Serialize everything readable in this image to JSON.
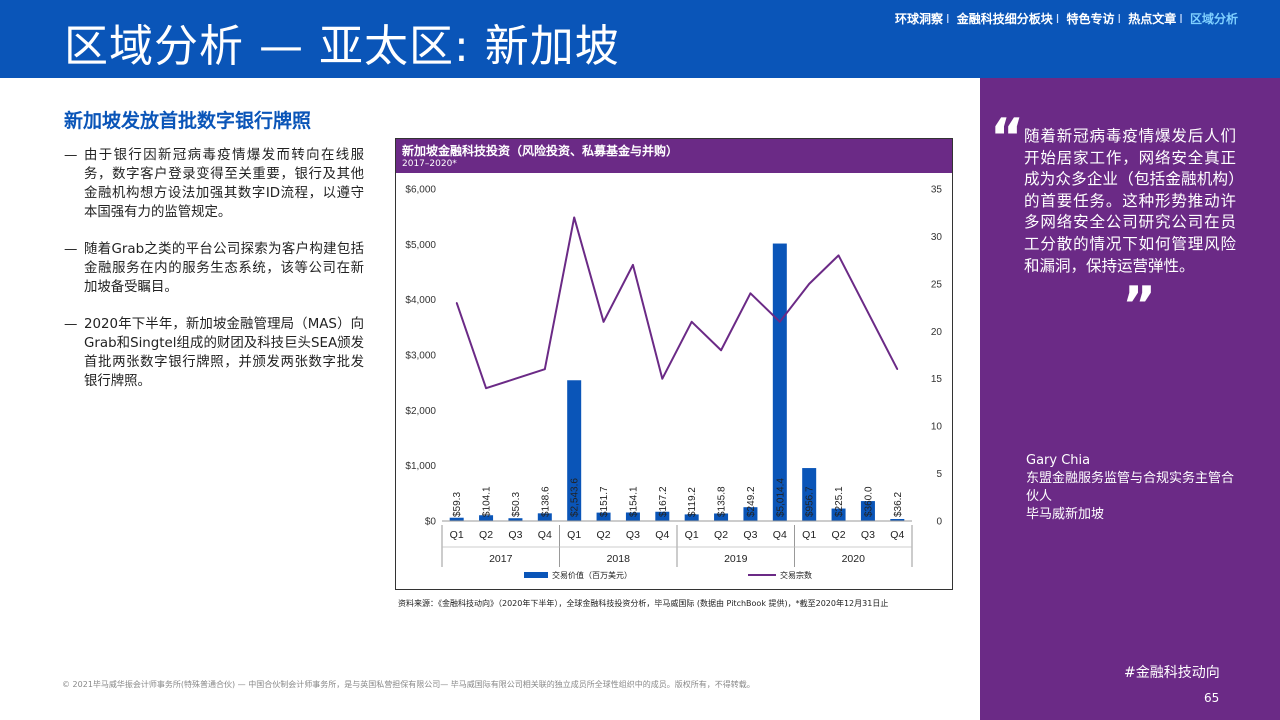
{
  "header": {
    "title": "区域分析 — 亚太区: 新加坡",
    "nav": [
      "环球洞察",
      "金融科技细分板块",
      "特色专访",
      "热点文章",
      "区域分析"
    ],
    "nav_separator": "I"
  },
  "main": {
    "subtitle": "新加坡发放首批数字银行牌照",
    "bullet_marker": "—",
    "bullets": [
      "由于银行因新冠病毒疫情爆发而转向在线服务，数字客户登录变得至关重要，银行及其他金融机构想方设法加强其数字ID流程，以遵守本国强有力的监管规定。",
      "随着Grab之类的平台公司探索为客户构建包括金融服务在内的服务生态系统，该等公司在新加坡备受瞩目。",
      "2020年下半年，新加坡金融管理局（MAS）向Grab和Singtel组成的财团及科技巨头SEA颁发首批两张数字银行牌照，并颁发两张数字批发银行牌照。"
    ]
  },
  "chart_data": {
    "type": "bar",
    "title": "新加坡金融科技投资（风险投资、私募基金与并购）",
    "subtitle": "2017–2020*",
    "categories": [
      "Q1",
      "Q2",
      "Q3",
      "Q4",
      "Q1",
      "Q2",
      "Q3",
      "Q4",
      "Q1",
      "Q2",
      "Q3",
      "Q4",
      "Q1",
      "Q2",
      "Q3",
      "Q4"
    ],
    "years": [
      "2017",
      "2018",
      "2019",
      "2020"
    ],
    "series": [
      {
        "name": "交易价值（百万美元）",
        "type": "bar",
        "axis": "left",
        "values": [
          59.3,
          104.1,
          50.3,
          138.6,
          2543.6,
          151.7,
          154.1,
          167.2,
          119.2,
          135.8,
          249.2,
          5014.4,
          956.7,
          225.1,
          360.0,
          36.2
        ],
        "labels": [
          "$59.3",
          "$104.1",
          "$50.3",
          "$138.6",
          "$2,543.6",
          "$151.7",
          "$154.1",
          "$167.2",
          "$119.2",
          "$135.8",
          "$249.2",
          "$5,014.4",
          "$956.7",
          "$225.1",
          "$360.0",
          "$36.2"
        ]
      },
      {
        "name": "交易宗数",
        "type": "line",
        "axis": "right",
        "values": [
          23,
          14,
          15,
          16,
          32,
          21,
          27,
          15,
          21,
          18,
          24,
          21,
          25,
          28,
          22,
          16
        ]
      }
    ],
    "y_left": {
      "min": 0,
      "max": 6000,
      "ticks": [
        0,
        1000,
        2000,
        3000,
        4000,
        5000,
        6000
      ],
      "tick_labels": [
        "$0",
        "$1,000",
        "$2,000",
        "$3,000",
        "$4,000",
        "$5,000",
        "$6,000"
      ]
    },
    "y_right": {
      "min": 0,
      "max": 35,
      "ticks": [
        0,
        5,
        10,
        15,
        20,
        25,
        30,
        35
      ]
    },
    "grid": false,
    "legend": "bottom",
    "colors": {
      "bar": "#0a55b8",
      "line": "#6b2a86",
      "header": "#6b2a86"
    }
  },
  "source_note": "资料来源：《金融科技动向》（2020年下半年），全球金融科技投资分析，毕马威国际 (数据由 PitchBook 提供)，*截至2020年12月31日止",
  "sidebar": {
    "quote_open": "“",
    "quote_close": "”",
    "quote": "随着新冠病毒疫情爆发后人们开始居家工作，网络安全真正成为众多企业（包括金融机构）的首要任务。这种形势推动许多网络安全公司研究公司在员工分散的情况下如何管理风险和漏洞，保持运营弹性。",
    "person_name": "Gary Chia",
    "person_role": "东盟金融服务监管与合规实务主管合伙人",
    "person_org": "毕马威新加坡",
    "hashtag": "#金融科技动向",
    "page_number": "65"
  },
  "footer": "© 2021毕马威华振会计师事务所(特殊普通合伙) — 中国合伙制会计师事务所，是与英国私营担保有限公司— 毕马威国际有限公司相关联的独立成员所全球性组织中的成员。版权所有，不得转载。",
  "colors": {
    "brand_blue": "#0a55b8",
    "brand_purple": "#6b2a86"
  }
}
